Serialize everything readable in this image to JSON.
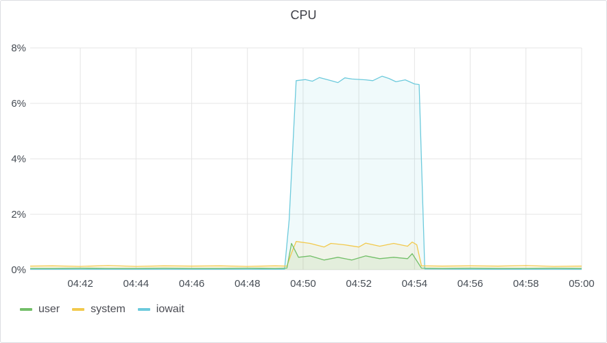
{
  "panel": {
    "title": "CPU"
  },
  "colors": {
    "user": "#73bf69",
    "system": "#f2c94c",
    "iowait": "#6ccadc",
    "grid": "#e4e4e4",
    "text": "#464c54"
  },
  "chart_data": {
    "type": "area",
    "title": "CPU",
    "y_ticks": [
      "0%",
      "2%",
      "4%",
      "6%",
      "8%"
    ],
    "ylim": [
      0,
      8
    ],
    "x_ticks": [
      "04:42",
      "04:44",
      "04:46",
      "04:48",
      "04:50",
      "04:52",
      "04:54",
      "04:56",
      "04:58",
      "05:00"
    ],
    "x_start": "04:40:12",
    "x_end": "05:00:00",
    "series": [
      {
        "name": "user",
        "points": [
          [
            "04:40:12",
            0.05
          ],
          [
            "04:41:00",
            0.05
          ],
          [
            "04:42:00",
            0.06
          ],
          [
            "04:43:00",
            0.05
          ],
          [
            "04:44:00",
            0.05
          ],
          [
            "04:45:00",
            0.06
          ],
          [
            "04:46:00",
            0.05
          ],
          [
            "04:47:00",
            0.05
          ],
          [
            "04:48:00",
            0.06
          ],
          [
            "04:49:00",
            0.05
          ],
          [
            "04:49:25",
            0.06
          ],
          [
            "04:49:35",
            0.95
          ],
          [
            "04:49:50",
            0.45
          ],
          [
            "04:50:15",
            0.5
          ],
          [
            "04:50:45",
            0.35
          ],
          [
            "04:51:15",
            0.45
          ],
          [
            "04:51:45",
            0.35
          ],
          [
            "04:52:15",
            0.5
          ],
          [
            "04:52:45",
            0.4
          ],
          [
            "04:53:15",
            0.45
          ],
          [
            "04:53:45",
            0.4
          ],
          [
            "04:53:55",
            0.58
          ],
          [
            "04:54:15",
            0.06
          ],
          [
            "04:55:00",
            0.05
          ],
          [
            "04:56:00",
            0.06
          ],
          [
            "04:57:00",
            0.05
          ],
          [
            "04:58:00",
            0.05
          ],
          [
            "04:59:00",
            0.06
          ],
          [
            "05:00:00",
            0.05
          ]
        ]
      },
      {
        "name": "system",
        "points": [
          [
            "04:40:12",
            0.13
          ],
          [
            "04:41:00",
            0.14
          ],
          [
            "04:42:00",
            0.12
          ],
          [
            "04:43:00",
            0.15
          ],
          [
            "04:44:00",
            0.12
          ],
          [
            "04:45:00",
            0.14
          ],
          [
            "04:46:00",
            0.13
          ],
          [
            "04:47:00",
            0.14
          ],
          [
            "04:48:00",
            0.12
          ],
          [
            "04:49:00",
            0.14
          ],
          [
            "04:49:25",
            0.13
          ],
          [
            "04:49:35",
            0.6
          ],
          [
            "04:49:45",
            1.02
          ],
          [
            "04:50:15",
            0.95
          ],
          [
            "04:50:45",
            0.82
          ],
          [
            "04:51:00",
            0.95
          ],
          [
            "04:51:30",
            0.9
          ],
          [
            "04:52:00",
            0.82
          ],
          [
            "04:52:15",
            0.96
          ],
          [
            "04:52:45",
            0.85
          ],
          [
            "04:53:15",
            0.95
          ],
          [
            "04:53:45",
            0.85
          ],
          [
            "04:53:55",
            1.0
          ],
          [
            "04:54:05",
            0.9
          ],
          [
            "04:54:15",
            0.14
          ],
          [
            "04:55:00",
            0.13
          ],
          [
            "04:56:00",
            0.14
          ],
          [
            "04:57:00",
            0.13
          ],
          [
            "04:58:00",
            0.15
          ],
          [
            "04:59:00",
            0.12
          ],
          [
            "05:00:00",
            0.13
          ]
        ]
      },
      {
        "name": "iowait",
        "points": [
          [
            "04:40:12",
            0.02
          ],
          [
            "04:42:00",
            0.02
          ],
          [
            "04:44:00",
            0.02
          ],
          [
            "04:46:00",
            0.02
          ],
          [
            "04:48:00",
            0.02
          ],
          [
            "04:49:20",
            0.02
          ],
          [
            "04:49:30",
            1.8
          ],
          [
            "04:49:45",
            6.82
          ],
          [
            "04:50:05",
            6.86
          ],
          [
            "04:50:20",
            6.8
          ],
          [
            "04:50:35",
            6.93
          ],
          [
            "04:51:00",
            6.82
          ],
          [
            "04:51:15",
            6.75
          ],
          [
            "04:51:30",
            6.92
          ],
          [
            "04:51:45",
            6.88
          ],
          [
            "04:52:15",
            6.85
          ],
          [
            "04:52:30",
            6.82
          ],
          [
            "04:52:50",
            6.98
          ],
          [
            "04:53:05",
            6.9
          ],
          [
            "04:53:20",
            6.78
          ],
          [
            "04:53:40",
            6.85
          ],
          [
            "04:54:00",
            6.7
          ],
          [
            "04:54:10",
            6.68
          ],
          [
            "04:54:22",
            0.03
          ],
          [
            "04:56:00",
            0.02
          ],
          [
            "04:58:00",
            0.02
          ],
          [
            "05:00:00",
            0.02
          ]
        ]
      }
    ],
    "legend_position": "bottom-left",
    "grid": true
  },
  "legend": {
    "items": [
      {
        "label": "user"
      },
      {
        "label": "system"
      },
      {
        "label": "iowait"
      }
    ]
  }
}
